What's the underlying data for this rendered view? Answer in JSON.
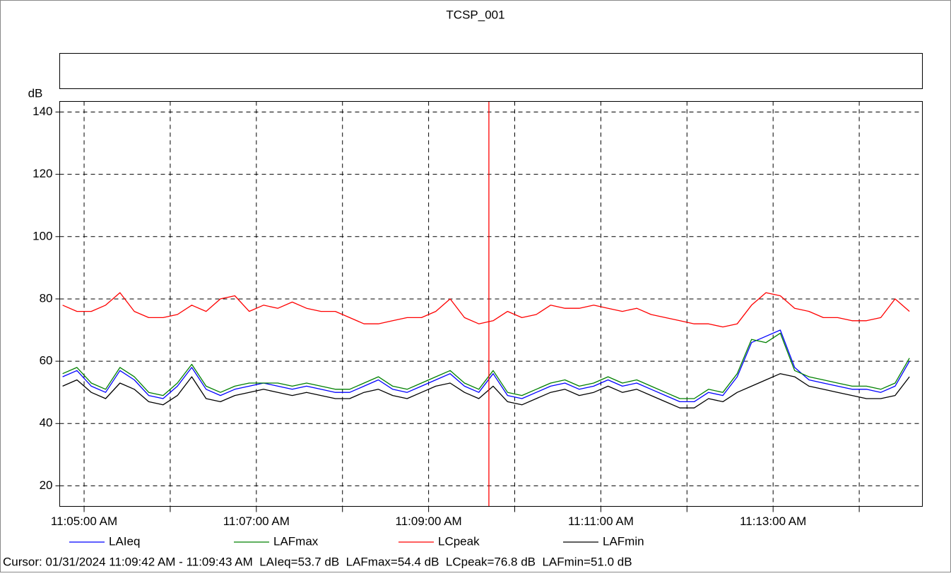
{
  "chart_data": {
    "type": "line",
    "title": "TCSP_001",
    "y_unit": "dB",
    "x": [
      "11:04:45 AM",
      "11:04:55 AM",
      "11:05:05 AM",
      "11:05:15 AM",
      "11:05:25 AM",
      "11:05:35 AM",
      "11:05:45 AM",
      "11:05:55 AM",
      "11:06:05 AM",
      "11:06:15 AM",
      "11:06:25 AM",
      "11:06:35 AM",
      "11:06:45 AM",
      "11:06:55 AM",
      "11:07:05 AM",
      "11:07:15 AM",
      "11:07:25 AM",
      "11:07:35 AM",
      "11:07:45 AM",
      "11:07:55 AM",
      "11:08:05 AM",
      "11:08:15 AM",
      "11:08:25 AM",
      "11:08:35 AM",
      "11:08:45 AM",
      "11:08:55 AM",
      "11:09:05 AM",
      "11:09:15 AM",
      "11:09:25 AM",
      "11:09:35 AM",
      "11:09:45 AM",
      "11:09:55 AM",
      "11:10:05 AM",
      "11:10:15 AM",
      "11:10:25 AM",
      "11:10:35 AM",
      "11:10:45 AM",
      "11:10:55 AM",
      "11:11:05 AM",
      "11:11:15 AM",
      "11:11:25 AM",
      "11:11:35 AM",
      "11:11:45 AM",
      "11:11:55 AM",
      "11:12:05 AM",
      "11:12:15 AM",
      "11:12:25 AM",
      "11:12:35 AM",
      "11:12:45 AM",
      "11:12:55 AM",
      "11:13:05 AM",
      "11:13:15 AM",
      "11:13:25 AM",
      "11:13:35 AM",
      "11:13:45 AM",
      "11:13:55 AM",
      "11:14:05 AM",
      "11:14:15 AM",
      "11:14:25 AM",
      "11:14:35 AM"
    ],
    "series": [
      {
        "name": "LAIeq",
        "color": "#0000ff",
        "values": [
          55,
          57,
          52,
          50,
          57,
          54,
          49,
          48,
          52,
          58,
          51,
          49,
          51,
          52,
          53,
          52,
          51,
          52,
          51,
          50,
          50,
          52,
          54,
          51,
          50,
          52,
          54,
          56,
          52,
          50,
          56,
          49,
          48,
          50,
          52,
          53,
          51,
          52,
          54,
          52,
          53,
          51,
          49,
          47,
          47,
          50,
          49,
          55,
          66,
          68,
          70,
          58,
          54,
          53,
          52,
          51,
          51,
          50,
          52,
          60
        ]
      },
      {
        "name": "LAFmax",
        "color": "#008000",
        "values": [
          56,
          58,
          53,
          51,
          58,
          55,
          50,
          49,
          53,
          59,
          52,
          50,
          52,
          53,
          53,
          53,
          52,
          53,
          52,
          51,
          51,
          53,
          55,
          52,
          51,
          53,
          55,
          57,
          53,
          51,
          57,
          50,
          49,
          51,
          53,
          54,
          52,
          53,
          55,
          53,
          54,
          52,
          50,
          48,
          48,
          51,
          50,
          56,
          67,
          66,
          69,
          57,
          55,
          54,
          53,
          52,
          52,
          51,
          53,
          61
        ]
      },
      {
        "name": "LCpeak",
        "color": "#ff0000",
        "values": [
          78,
          76,
          76,
          78,
          82,
          76,
          74,
          74,
          75,
          78,
          76,
          80,
          81,
          76,
          78,
          77,
          79,
          77,
          76,
          76,
          74,
          72,
          72,
          73,
          74,
          74,
          76,
          80,
          74,
          72,
          73,
          76,
          74,
          75,
          78,
          77,
          77,
          78,
          77,
          76,
          77,
          75,
          74,
          73,
          72,
          72,
          71,
          72,
          78,
          82,
          81,
          77,
          76,
          74,
          74,
          73,
          73,
          74,
          80,
          76
        ]
      },
      {
        "name": "LAFmin",
        "color": "#000000",
        "values": [
          52,
          54,
          50,
          48,
          53,
          51,
          47,
          46,
          49,
          55,
          48,
          47,
          49,
          50,
          51,
          50,
          49,
          50,
          49,
          48,
          48,
          50,
          51,
          49,
          48,
          50,
          52,
          53,
          50,
          48,
          52,
          47,
          46,
          48,
          50,
          51,
          49,
          50,
          52,
          50,
          51,
          49,
          47,
          45,
          45,
          48,
          47,
          50,
          52,
          54,
          56,
          55,
          52,
          51,
          50,
          49,
          48,
          48,
          49,
          55
        ]
      }
    ],
    "xlim": [
      "11:04:43 AM",
      "11:14:44 AM"
    ],
    "xticks": [
      "11:05:00 AM",
      "11:07:00 AM",
      "11:09:00 AM",
      "11:11:00 AM",
      "11:13:00 AM"
    ],
    "xminorticks": [
      "11:06:00 AM",
      "11:08:00 AM",
      "11:10:00 AM",
      "11:12:00 AM",
      "11:14:00 AM"
    ],
    "ylim": [
      13.4,
      143.4
    ],
    "yticks": [
      20,
      40,
      60,
      80,
      100,
      120,
      140
    ],
    "grid": true,
    "cursor": {
      "x": "11:09:42 AM",
      "color": "#ff0000"
    },
    "cursor_text": "Cursor: 01/31/2024 11:09:42 AM - 11:09:43 AM  LAIeq=53.7 dB  LAFmax=54.4 dB  LCpeak=76.8 dB  LAFmin=51.0 dB"
  }
}
